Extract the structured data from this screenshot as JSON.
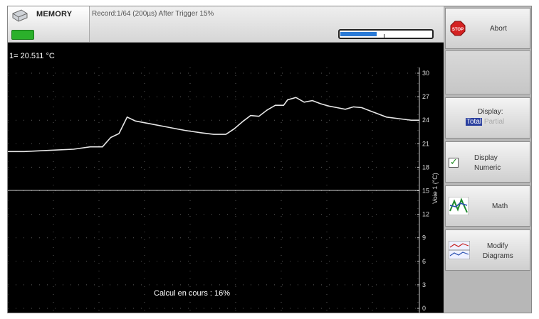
{
  "header": {
    "mode_label": "MEMORY",
    "record_info": "Record:1/64 (200µs) After Trigger 15%",
    "record_progress_fraction": 0.4,
    "battery_color": "#2bb02b"
  },
  "readout": {
    "text": "1= 20.511 °C"
  },
  "status_text": "Calcul en cours : 16%",
  "sidebar": {
    "abort": {
      "label": "Abort",
      "icon": "stop-icon"
    },
    "display": {
      "label": "Display:",
      "option_total": "Total",
      "option_partial": "Partial"
    },
    "display_numeric": {
      "label_line1": "Display",
      "label_line2": "Numeric",
      "checked": true
    },
    "math": {
      "label": "Math",
      "icon": "math-icon"
    },
    "modify": {
      "label_line1": "Modify",
      "label_line2": "Diagrams",
      "icon": "diagram-icon"
    }
  },
  "chart_data": {
    "type": "line",
    "ylabel": "Voie 1 (°C)",
    "ylim": [
      0,
      30
    ],
    "y_ticks": [
      "30",
      "27",
      "24",
      "21",
      "18",
      "15",
      "12",
      "9",
      "6",
      "3",
      "0"
    ],
    "grid": true,
    "series": [
      {
        "color": "#e6e6e6",
        "points": [
          [
            0,
            20.0
          ],
          [
            0.04,
            20.0
          ],
          [
            0.08,
            20.1
          ],
          [
            0.12,
            20.2
          ],
          [
            0.16,
            20.3
          ],
          [
            0.2,
            20.6
          ],
          [
            0.23,
            20.6
          ],
          [
            0.25,
            21.8
          ],
          [
            0.27,
            22.3
          ],
          [
            0.29,
            24.4
          ],
          [
            0.31,
            23.9
          ],
          [
            0.35,
            23.5
          ],
          [
            0.39,
            23.1
          ],
          [
            0.43,
            22.7
          ],
          [
            0.47,
            22.4
          ],
          [
            0.5,
            22.2
          ],
          [
            0.53,
            22.2
          ],
          [
            0.55,
            22.9
          ],
          [
            0.57,
            23.8
          ],
          [
            0.59,
            24.6
          ],
          [
            0.61,
            24.5
          ],
          [
            0.63,
            25.3
          ],
          [
            0.65,
            25.9
          ],
          [
            0.67,
            25.9
          ],
          [
            0.68,
            26.6
          ],
          [
            0.7,
            26.9
          ],
          [
            0.72,
            26.3
          ],
          [
            0.74,
            26.5
          ],
          [
            0.76,
            26.1
          ],
          [
            0.78,
            25.8
          ],
          [
            0.8,
            25.6
          ],
          [
            0.82,
            25.4
          ],
          [
            0.84,
            25.7
          ],
          [
            0.86,
            25.6
          ],
          [
            0.88,
            25.2
          ],
          [
            0.9,
            24.8
          ],
          [
            0.92,
            24.4
          ],
          [
            0.95,
            24.2
          ],
          [
            0.98,
            24.0
          ],
          [
            1.0,
            24.0
          ]
        ]
      }
    ]
  }
}
